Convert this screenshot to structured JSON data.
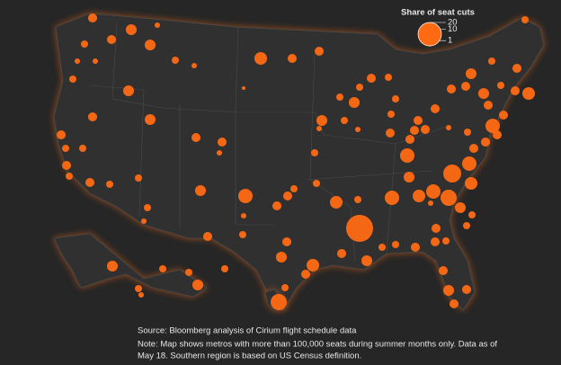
{
  "legend": {
    "title": "Share of seat cuts",
    "sizes": [
      1,
      10,
      20
    ]
  },
  "bubbles": {
    "color": "#ff6a13",
    "values": [
      3.0,
      4.3,
      1.1,
      3.0,
      1.9,
      1.1,
      1.1,
      4.3,
      1.9,
      1.1,
      5.8,
      3.0,
      3.0,
      1.9,
      4.3,
      0.5,
      3.0,
      4.3,
      3.0,
      1.9,
      1.9,
      3.0,
      1.9,
      3.0,
      1.9,
      1.9,
      1.9,
      1.1,
      3.0,
      3.0,
      1.1,
      4.3,
      7.6,
      1.1,
      1.9,
      3.0,
      3.0,
      1.9,
      1.9,
      5.8,
      1.9,
      1.9,
      4.3,
      1.9,
      1.9,
      1.1,
      4.3,
      1.9,
      3.0,
      1.9,
      1.9,
      3.0,
      3.0,
      7.6,
      3.0,
      3.0,
      3.0,
      3.0,
      4.3,
      7.6,
      5.8,
      7.6,
      11.8,
      7.6,
      5.8,
      9.6,
      4.3,
      26.6,
      3.0,
      4.3,
      1.9,
      1.9,
      3.0,
      3.0,
      1.9,
      3.0,
      1.9,
      1.9,
      3.0,
      3.0,
      7.6,
      3.0,
      1.9,
      3.0,
      4.3,
      3.0,
      3.0,
      4.3,
      1.9,
      3.0,
      5.8,
      3.0,
      1.9,
      3.0,
      1.9,
      3.0,
      4.3,
      3.0,
      5.8,
      3.0,
      9.6,
      1.9,
      4.3,
      1.9,
      1.9,
      4.3,
      1.9,
      1.9,
      1.1,
      3.0,
      4.3,
      3.0,
      3.0,
      1.1,
      1.1,
      1.1,
      1.9
    ]
  },
  "source": "Source: Bloomberg analysis of Cirium flight schedule data",
  "note": [
    "Note: Map shows metros with more than 100,000 seats during summer months only. Data as of",
    "May 18. Southern region is based on US Census definition."
  ]
}
